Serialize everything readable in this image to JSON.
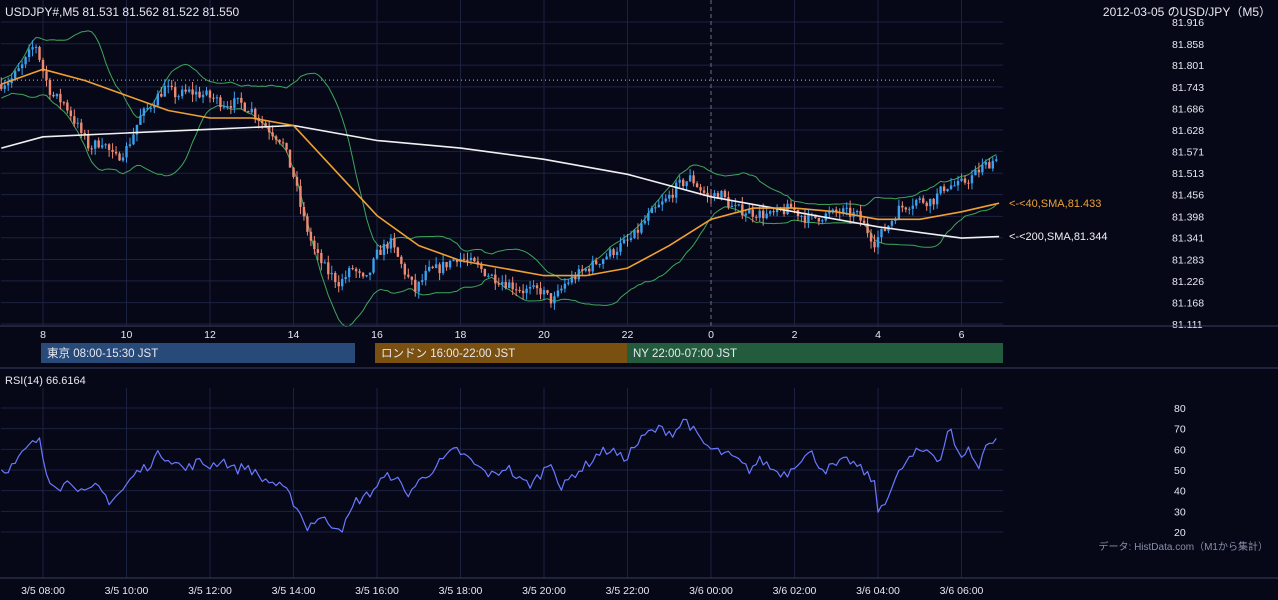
{
  "header": {
    "symbol_info": "USDJPY#,M5 81.531 81.562 81.522 81.550",
    "title_right": "2012-03-05 のUSD/JPY（M5）"
  },
  "sessions": [
    {
      "label": "東京 08:00-15:30 JST",
      "color": "#274a78"
    },
    {
      "label": "ロンドン 16:00-22:00 JST",
      "color": "#7a5010"
    },
    {
      "label": "NY 22:00-07:00 JST",
      "color": "#235c3d"
    }
  ],
  "annotations": {
    "sma40": "<-<40,SMA,81.433",
    "sma200": "<-<200,SMA,81.344"
  },
  "rsi_label": "RSI(14) 66.6164",
  "credit": "データ: HistData.com（M1から集計）",
  "colors": {
    "background": "#060818",
    "grid": "#1c2140",
    "candle_up": "#3aa0ef",
    "candle_down": "#ef8a72",
    "sma40": "#f0a033",
    "sma200": "#f0f0f0",
    "bollinger": "#3fa55a",
    "rsi": "#6a78ff"
  },
  "chart_data": [
    {
      "type": "candlestick",
      "title": "USDJPY#,M5",
      "ylim": [
        81.111,
        81.916
      ],
      "y_ticks": [
        81.916,
        81.858,
        81.801,
        81.743,
        81.686,
        81.628,
        81.571,
        81.513,
        81.456,
        81.398,
        81.341,
        81.283,
        81.226,
        81.168,
        81.111
      ],
      "x_ticks": [
        {
          "label": "8",
          "hour": 8
        },
        {
          "label": "10",
          "hour": 10
        },
        {
          "label": "12",
          "hour": 12
        },
        {
          "label": "14",
          "hour": 14
        },
        {
          "label": "16",
          "hour": 16
        },
        {
          "label": "18",
          "hour": 18
        },
        {
          "label": "20",
          "hour": 20
        },
        {
          "label": "22",
          "hour": 22
        },
        {
          "label": "0",
          "hour": 24
        },
        {
          "label": "2",
          "hour": 26
        },
        {
          "label": "4",
          "hour": 28
        },
        {
          "label": "6",
          "hour": 30
        }
      ],
      "x_range_hours": [
        7.0,
        31.0
      ],
      "last": {
        "open": 81.531,
        "high": 81.562,
        "low": 81.522,
        "close": 81.55
      },
      "price_path": [
        [
          7.0,
          81.75
        ],
        [
          7.3,
          81.76
        ],
        [
          7.6,
          81.8
        ],
        [
          7.9,
          81.86
        ],
        [
          8.1,
          81.78
        ],
        [
          8.3,
          81.72
        ],
        [
          8.6,
          81.7
        ],
        [
          8.9,
          81.64
        ],
        [
          9.2,
          81.58
        ],
        [
          9.5,
          81.6
        ],
        [
          9.8,
          81.55
        ],
        [
          10.1,
          81.58
        ],
        [
          10.4,
          81.66
        ],
        [
          10.7,
          81.7
        ],
        [
          11.0,
          81.74
        ],
        [
          11.3,
          81.72
        ],
        [
          11.6,
          81.73
        ],
        [
          12.0,
          81.72
        ],
        [
          12.4,
          81.7
        ],
        [
          12.8,
          81.7
        ],
        [
          13.1,
          81.68
        ],
        [
          13.4,
          81.64
        ],
        [
          13.8,
          81.6
        ],
        [
          14.1,
          81.5
        ],
        [
          14.3,
          81.4
        ],
        [
          14.6,
          81.3
        ],
        [
          14.9,
          81.25
        ],
        [
          15.2,
          81.22
        ],
        [
          15.5,
          81.26
        ],
        [
          15.8,
          81.22
        ],
        [
          16.1,
          81.3
        ],
        [
          16.4,
          81.33
        ],
        [
          16.7,
          81.26
        ],
        [
          17.0,
          81.2
        ],
        [
          17.3,
          81.25
        ],
        [
          17.6,
          81.26
        ],
        [
          18.0,
          81.29
        ],
        [
          18.4,
          81.27
        ],
        [
          18.8,
          81.24
        ],
        [
          19.2,
          81.22
        ],
        [
          19.6,
          81.2
        ],
        [
          20.0,
          81.2
        ],
        [
          20.3,
          81.17
        ],
        [
          20.6,
          81.22
        ],
        [
          21.0,
          81.25
        ],
        [
          21.4,
          81.28
        ],
        [
          21.8,
          81.31
        ],
        [
          22.2,
          81.34
        ],
        [
          22.6,
          81.4
        ],
        [
          23.0,
          81.44
        ],
        [
          23.3,
          81.48
        ],
        [
          23.6,
          81.5
        ],
        [
          24.0,
          81.45
        ],
        [
          24.3,
          81.46
        ],
        [
          24.6,
          81.42
        ],
        [
          25.0,
          81.41
        ],
        [
          25.5,
          81.4
        ],
        [
          26.0,
          81.42
        ],
        [
          26.4,
          81.39
        ],
        [
          26.8,
          81.4
        ],
        [
          27.2,
          81.41
        ],
        [
          27.6,
          81.4
        ],
        [
          28.0,
          81.33
        ],
        [
          28.3,
          81.37
        ],
        [
          28.6,
          81.42
        ],
        [
          29.0,
          81.44
        ],
        [
          29.4,
          81.44
        ],
        [
          29.7,
          81.48
        ],
        [
          30.0,
          81.48
        ],
        [
          30.3,
          81.5
        ],
        [
          30.6,
          81.53
        ],
        [
          30.9,
          81.55
        ]
      ],
      "sma40_path": [
        [
          7.0,
          81.75
        ],
        [
          8.0,
          81.79
        ],
        [
          9.0,
          81.76
        ],
        [
          10.0,
          81.72
        ],
        [
          11.0,
          81.68
        ],
        [
          12.0,
          81.66
        ],
        [
          13.0,
          81.66
        ],
        [
          14.0,
          81.64
        ],
        [
          15.0,
          81.52
        ],
        [
          16.0,
          81.4
        ],
        [
          17.0,
          81.32
        ],
        [
          18.0,
          81.28
        ],
        [
          19.0,
          81.26
        ],
        [
          20.0,
          81.24
        ],
        [
          21.0,
          81.24
        ],
        [
          22.0,
          81.26
        ],
        [
          23.0,
          81.32
        ],
        [
          24.0,
          81.39
        ],
        [
          25.0,
          81.42
        ],
        [
          26.0,
          81.42
        ],
        [
          27.0,
          81.41
        ],
        [
          28.0,
          81.39
        ],
        [
          29.0,
          81.39
        ],
        [
          30.0,
          81.41
        ],
        [
          30.9,
          81.433
        ]
      ],
      "sma200_path": [
        [
          7.0,
          81.58
        ],
        [
          8.0,
          81.61
        ],
        [
          10.0,
          81.62
        ],
        [
          12.0,
          81.63
        ],
        [
          14.0,
          81.64
        ],
        [
          16.0,
          81.6
        ],
        [
          18.0,
          81.58
        ],
        [
          20.0,
          81.55
        ],
        [
          22.0,
          81.51
        ],
        [
          24.0,
          81.45
        ],
        [
          26.0,
          81.41
        ],
        [
          28.0,
          81.37
        ],
        [
          30.0,
          81.34
        ],
        [
          30.9,
          81.344
        ]
      ],
      "dotted_level": 81.761
    },
    {
      "type": "line",
      "title": "RSI(14)",
      "ylim": [
        15,
        85
      ],
      "y_ticks": [
        80,
        70,
        60,
        50,
        40,
        30,
        20
      ],
      "x_ticks": [
        {
          "label": "3/5 08:00",
          "hour": 8
        },
        {
          "label": "3/5 10:00",
          "hour": 10
        },
        {
          "label": "3/5 12:00",
          "hour": 12
        },
        {
          "label": "3/5 14:00",
          "hour": 14
        },
        {
          "label": "3/5 16:00",
          "hour": 16
        },
        {
          "label": "3/5 18:00",
          "hour": 18
        },
        {
          "label": "3/5 20:00",
          "hour": 20
        },
        {
          "label": "3/5 22:00",
          "hour": 22
        },
        {
          "label": "3/6 00:00",
          "hour": 24
        },
        {
          "label": "3/6 02:00",
          "hour": 26
        },
        {
          "label": "3/6 04:00",
          "hour": 28
        },
        {
          "label": "3/6 06:00",
          "hour": 30
        }
      ],
      "series": [
        {
          "name": "RSI(14)",
          "points": [
            [
              7.0,
              50
            ],
            [
              7.3,
              52
            ],
            [
              7.6,
              60
            ],
            [
              7.9,
              65
            ],
            [
              8.1,
              47
            ],
            [
              8.4,
              42
            ],
            [
              8.7,
              45
            ],
            [
              9.0,
              38
            ],
            [
              9.3,
              42
            ],
            [
              9.6,
              35
            ],
            [
              9.9,
              40
            ],
            [
              10.2,
              48
            ],
            [
              10.5,
              52
            ],
            [
              10.8,
              58
            ],
            [
              11.1,
              55
            ],
            [
              11.4,
              50
            ],
            [
              11.7,
              54
            ],
            [
              12.0,
              52
            ],
            [
              12.3,
              55
            ],
            [
              12.6,
              50
            ],
            [
              12.9,
              52
            ],
            [
              13.2,
              46
            ],
            [
              13.5,
              44
            ],
            [
              13.8,
              40
            ],
            [
              14.1,
              32
            ],
            [
              14.3,
              22
            ],
            [
              14.6,
              27
            ],
            [
              14.9,
              24
            ],
            [
              15.2,
              22
            ],
            [
              15.5,
              35
            ],
            [
              15.8,
              38
            ],
            [
              16.1,
              45
            ],
            [
              16.4,
              48
            ],
            [
              16.7,
              38
            ],
            [
              17.0,
              44
            ],
            [
              17.3,
              50
            ],
            [
              17.6,
              55
            ],
            [
              17.9,
              60
            ],
            [
              18.2,
              55
            ],
            [
              18.5,
              50
            ],
            [
              18.8,
              47
            ],
            [
              19.1,
              52
            ],
            [
              19.4,
              45
            ],
            [
              19.7,
              43
            ],
            [
              20.0,
              50
            ],
            [
              20.2,
              55
            ],
            [
              20.4,
              40
            ],
            [
              20.7,
              48
            ],
            [
              21.0,
              52
            ],
            [
              21.3,
              58
            ],
            [
              21.6,
              60
            ],
            [
              21.9,
              55
            ],
            [
              22.2,
              62
            ],
            [
              22.5,
              68
            ],
            [
              22.8,
              70
            ],
            [
              23.1,
              68
            ],
            [
              23.4,
              75
            ],
            [
              23.7,
              65
            ],
            [
              24.0,
              60
            ],
            [
              24.3,
              58
            ],
            [
              24.6,
              55
            ],
            [
              24.9,
              50
            ],
            [
              25.2,
              55
            ],
            [
              25.5,
              50
            ],
            [
              25.8,
              48
            ],
            [
              26.1,
              55
            ],
            [
              26.4,
              58
            ],
            [
              26.7,
              50
            ],
            [
              27.0,
              52
            ],
            [
              27.3,
              55
            ],
            [
              27.6,
              50
            ],
            [
              27.9,
              45
            ],
            [
              28.0,
              30
            ],
            [
              28.3,
              40
            ],
            [
              28.6,
              52
            ],
            [
              28.9,
              58
            ],
            [
              29.2,
              60
            ],
            [
              29.5,
              55
            ],
            [
              29.7,
              72
            ],
            [
              29.9,
              57
            ],
            [
              30.2,
              60
            ],
            [
              30.4,
              50
            ],
            [
              30.6,
              63
            ],
            [
              30.9,
              66.6
            ]
          ]
        }
      ]
    }
  ]
}
